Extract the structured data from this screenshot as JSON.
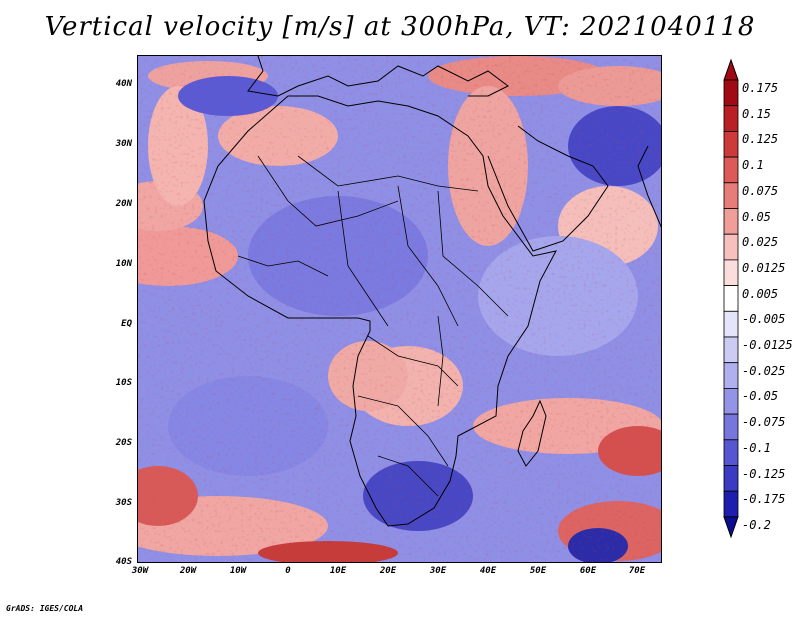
{
  "title": "Vertical velocity [m/s] at 300hPa, VT: 2021040118",
  "credit": "GrADS: IGES/COLA",
  "map": {
    "lat_range": [
      -40,
      45
    ],
    "lon_range": [
      -30,
      75
    ],
    "lat_labels": [
      "40N",
      "30N",
      "20N",
      "10N",
      "EQ",
      "10S",
      "20S",
      "30S",
      "40S"
    ],
    "lon_labels": [
      "30W",
      "20W",
      "10W",
      "0",
      "10E",
      "20E",
      "30E",
      "40E",
      "50E",
      "60E",
      "70E"
    ],
    "field": "vertical velocity",
    "colors": {
      "positive": "#c0202a",
      "negative": "#2a2ad0",
      "neutral": "#ffffff"
    }
  },
  "colorbar": {
    "labels": [
      "0.175",
      "0.15",
      "0.125",
      "0.1",
      "0.075",
      "0.05",
      "0.025",
      "0.0125",
      "0.005",
      "-0.005",
      "-0.0125",
      "-0.025",
      "-0.05",
      "-0.075",
      "-0.1",
      "-0.125",
      "-0.175",
      "-0.2"
    ],
    "colors": [
      "#a00a12",
      "#b82024",
      "#cc3a3a",
      "#dc5a58",
      "#e87c78",
      "#f09e9a",
      "#f7c0bd",
      "#fbdedc",
      "#ffffff",
      "#e4e4fa",
      "#cbcbf4",
      "#b0b0ee",
      "#9494e6",
      "#7676dc",
      "#5656d0",
      "#3a3ac2",
      "#1e1eae",
      "#0c0c90"
    ]
  }
}
